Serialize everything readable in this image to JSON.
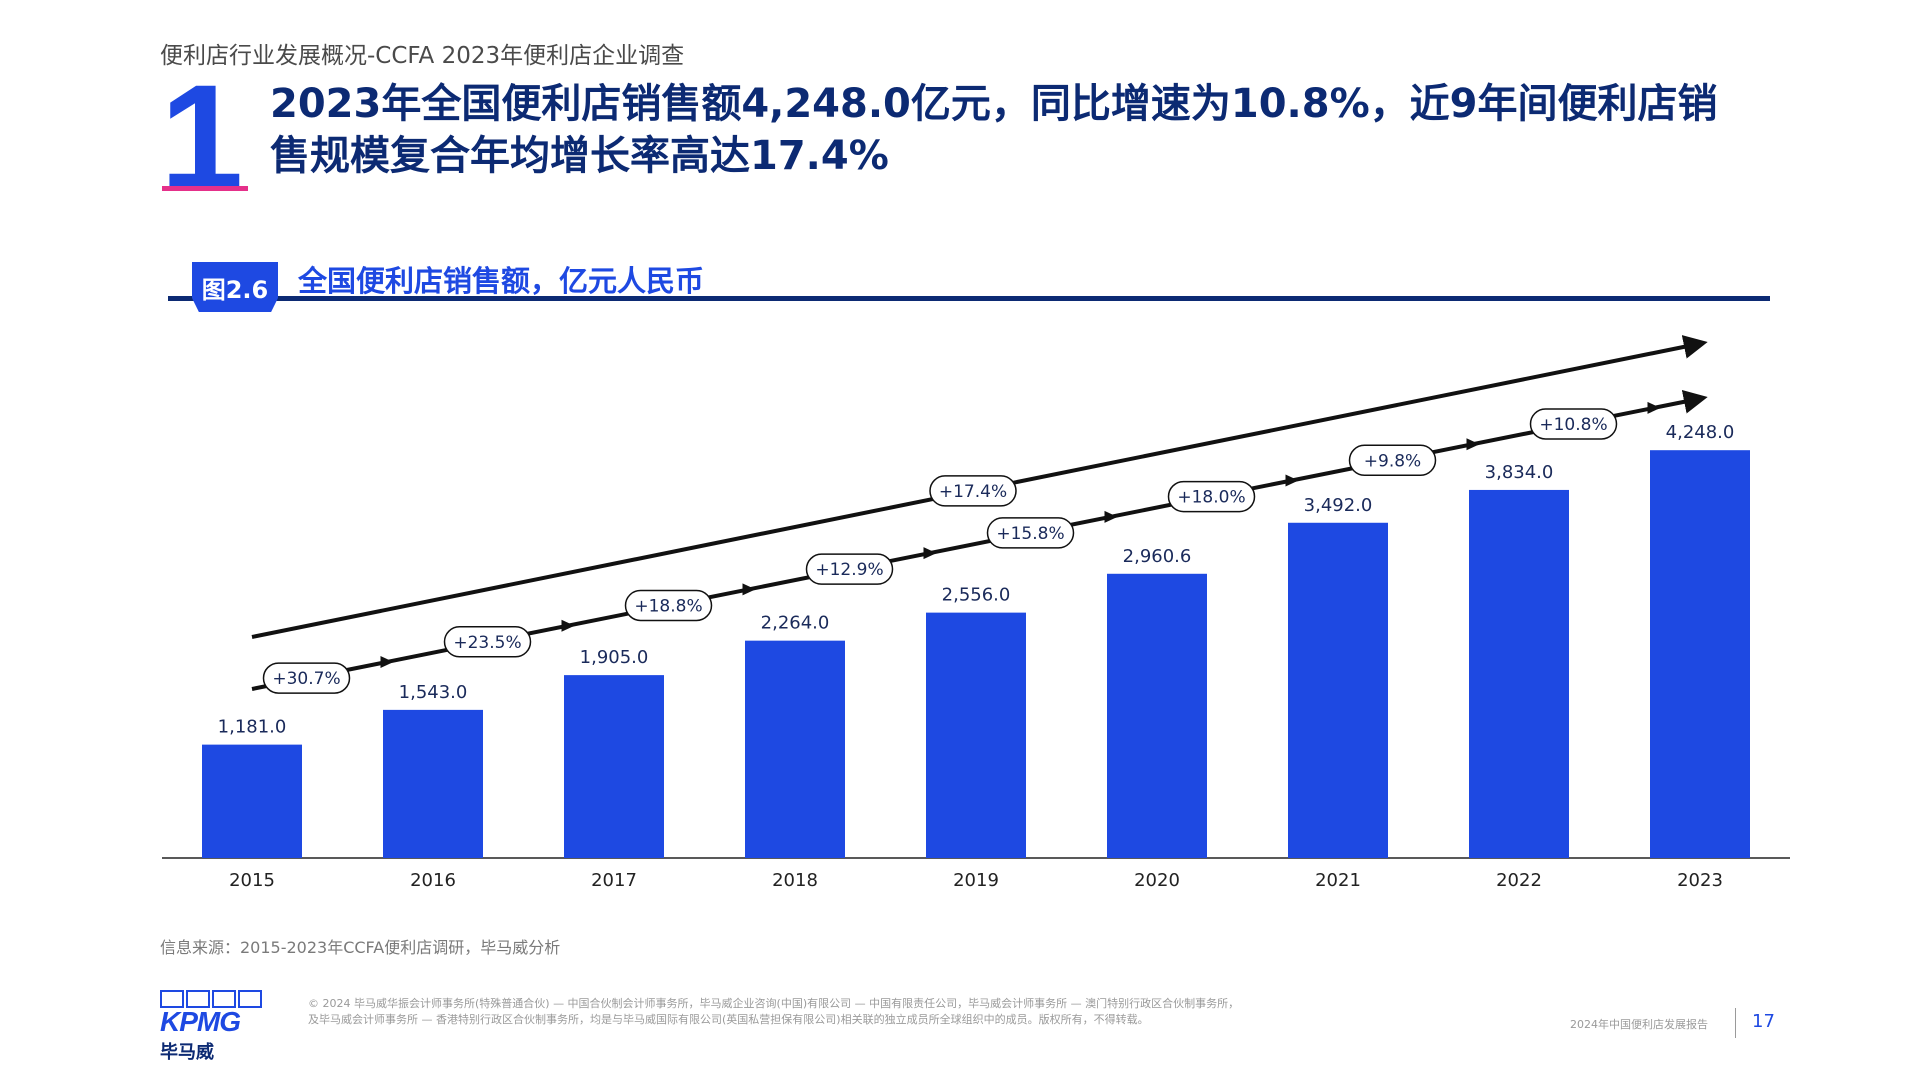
{
  "header": {
    "section_title": "便利店行业发展概况-CCFA 2023年便利店企业调查",
    "section_number": "1",
    "headline_line1": "2023年全国便利店销售额4,248.0亿元，同比增速为10.8%，近9年间便利店销",
    "headline_line2": "售规模复合年均增长率高达17.4%"
  },
  "figure": {
    "badge": "图2.6",
    "title": "全国便利店销售额，亿元人民币"
  },
  "chart_data": {
    "type": "bar",
    "categories": [
      "2015",
      "2016",
      "2017",
      "2018",
      "2019",
      "2020",
      "2021",
      "2022",
      "2023"
    ],
    "values": [
      1181.0,
      1543.0,
      1905.0,
      2264.0,
      2556.0,
      2960.6,
      3492.0,
      3834.0,
      4248.0
    ],
    "value_labels": [
      "1,181.0",
      "1,543.0",
      "1,905.0",
      "2,264.0",
      "2,556.0",
      "2,960.6",
      "3,492.0",
      "3,834.0",
      "4,248.0"
    ],
    "yoy_growth": [
      "+30.7%",
      "+23.5%",
      "+18.8%",
      "+12.9%",
      "+15.8%",
      "+18.0%",
      "+9.8%",
      "+10.8%"
    ],
    "cagr": "+17.4%",
    "title": "全国便利店销售额，亿元人民币",
    "ylim": [
      0,
      4500
    ],
    "grid": false,
    "bar_color": "#1e49e2"
  },
  "footer": {
    "source": "信息来源：2015-2023年CCFA便利店调研，毕马威分析",
    "logo_text": "KPMG",
    "logo_cn": "毕马威",
    "disclaimer_line1": "© 2024 毕马威华振会计师事务所(特殊普通合伙) — 中国合伙制会计师事务所，毕马威企业咨询(中国)有限公司 — 中国有限责任公司，毕马威会计师事务所 — 澳门特别行政区合伙制事务所，",
    "disclaimer_line2": "及毕马威会计师事务所 — 香港特别行政区合伙制事务所，均是与毕马威国际有限公司(英国私营担保有限公司)相关联的独立成员所全球组织中的成员。版权所有，不得转载。",
    "report_name": "2024年中国便利店发展报告",
    "page_number": "17"
  },
  "colors": {
    "accent": "#1e49e2",
    "navy": "#0c2a73",
    "pink": "#e5308a"
  }
}
